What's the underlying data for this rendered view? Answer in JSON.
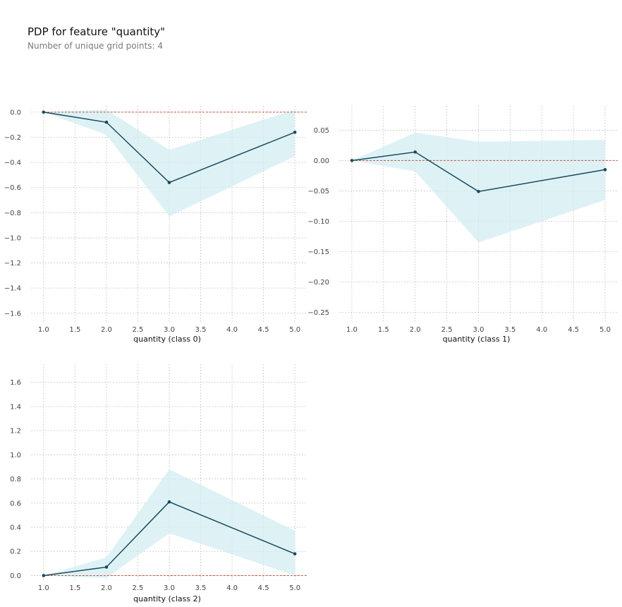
{
  "title": "PDP for feature \"quantity\"",
  "subtitle": "Number of unique grid points: 4",
  "colors": {
    "line": "#1a4a5c",
    "band": "#d3eef3",
    "baseline": "#c0573f",
    "grid": "#c8c8c8",
    "tick_text": "#444444"
  },
  "chart_data": [
    {
      "type": "line",
      "xlabel": "quantity (class 0)",
      "ylabel": "",
      "x": [
        1.0,
        2.0,
        3.0,
        5.0
      ],
      "series": [
        {
          "values": [
            0.0,
            -0.08,
            -0.56,
            -0.16
          ],
          "lower": [
            0.0,
            -0.18,
            -0.83,
            -0.35
          ],
          "upper": [
            0.0,
            0.02,
            -0.3,
            0.02
          ]
        }
      ],
      "baseline": 0.0,
      "xlim": [
        0.8,
        5.2
      ],
      "ylim": [
        -1.68,
        0.05
      ],
      "xticks": [
        1.0,
        1.5,
        2.0,
        2.5,
        3.0,
        3.5,
        4.0,
        4.5,
        5.0
      ],
      "yticks": [
        0.0,
        -0.2,
        -0.4,
        -0.6,
        -0.8,
        -1.0,
        -1.2,
        -1.4,
        -1.6
      ],
      "xtick_labels": [
        "1.0",
        "1.5",
        "2.0",
        "2.5",
        "3.0",
        "3.5",
        "4.0",
        "4.5",
        "5.0"
      ],
      "ytick_labels": [
        "0.0",
        "−0.2",
        "−0.4",
        "−0.6",
        "−0.8",
        "−1.0",
        "−1.2",
        "−1.4",
        "−1.6"
      ],
      "grid": true
    },
    {
      "type": "line",
      "xlabel": "quantity (class 1)",
      "ylabel": "",
      "x": [
        1.0,
        2.0,
        3.0,
        5.0
      ],
      "series": [
        {
          "values": [
            0.0,
            0.014,
            -0.051,
            -0.015
          ],
          "lower": [
            0.0,
            -0.018,
            -0.135,
            -0.065
          ],
          "upper": [
            0.0,
            0.046,
            0.031,
            0.034
          ]
        }
      ],
      "baseline": 0.0,
      "xlim": [
        0.8,
        5.2
      ],
      "ylim": [
        -0.268,
        0.09
      ],
      "xticks": [
        1.0,
        1.5,
        2.0,
        2.5,
        3.0,
        3.5,
        4.0,
        4.5,
        5.0
      ],
      "yticks": [
        0.05,
        0.0,
        -0.05,
        -0.1,
        -0.15,
        -0.2,
        -0.25
      ],
      "xtick_labels": [
        "1.0",
        "1.5",
        "2.0",
        "2.5",
        "3.0",
        "3.5",
        "4.0",
        "4.5",
        "5.0"
      ],
      "ytick_labels": [
        "0.05",
        "0.00",
        "−0.05",
        "−0.10",
        "−0.15",
        "−0.20",
        "−0.25"
      ],
      "grid": true
    },
    {
      "type": "line",
      "xlabel": "quantity (class 2)",
      "ylabel": "",
      "x": [
        1.0,
        2.0,
        3.0,
        5.0
      ],
      "series": [
        {
          "values": [
            0.0,
            0.07,
            0.61,
            0.18
          ],
          "lower": [
            0.0,
            -0.02,
            0.35,
            0.0
          ],
          "upper": [
            0.0,
            0.15,
            0.88,
            0.37
          ]
        }
      ],
      "baseline": 0.0,
      "xlim": [
        0.8,
        5.2
      ],
      "ylim": [
        -0.05,
        1.75
      ],
      "xticks": [
        1.0,
        1.5,
        2.0,
        2.5,
        3.0,
        3.5,
        4.0,
        4.5,
        5.0
      ],
      "yticks": [
        0.0,
        0.2,
        0.4,
        0.6,
        0.8,
        1.0,
        1.2,
        1.4,
        1.6
      ],
      "xtick_labels": [
        "1.0",
        "1.5",
        "2.0",
        "2.5",
        "3.0",
        "3.5",
        "4.0",
        "4.5",
        "5.0"
      ],
      "ytick_labels": [
        "0.0",
        "0.2",
        "0.4",
        "0.6",
        "0.8",
        "1.0",
        "1.2",
        "1.4",
        "1.6"
      ],
      "grid": true
    }
  ]
}
